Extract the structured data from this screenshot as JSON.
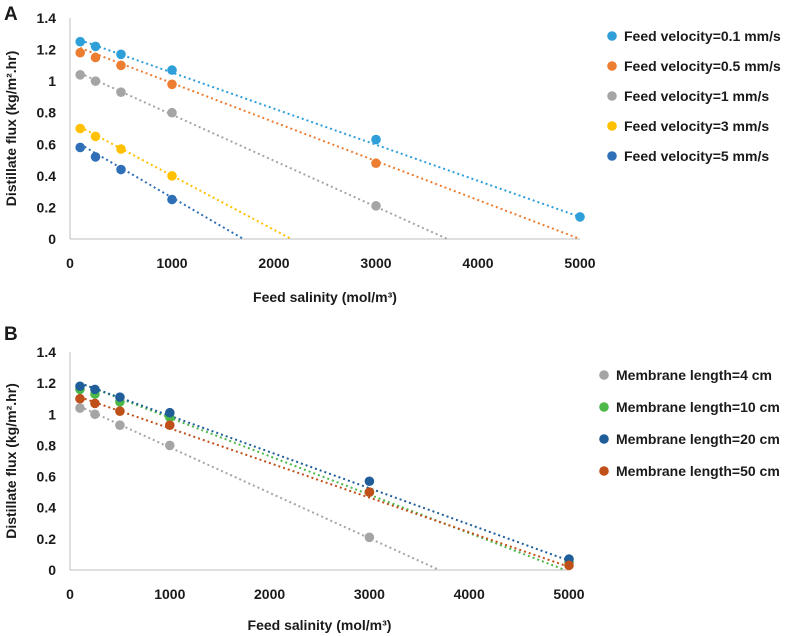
{
  "chart_data": [
    {
      "panel_label": "A",
      "type": "scatter",
      "xlabel": "Feed salinity (mol/m³)",
      "ylabel": "Distillate flux (kg/m².hr)",
      "xlim": [
        0,
        5000
      ],
      "ylim": [
        0,
        1.4
      ],
      "xticks": [
        "0",
        "1000",
        "2000",
        "3000",
        "4000",
        "5000"
      ],
      "yticks": [
        "0",
        "0.2",
        "0.4",
        "0.6",
        "0.8",
        "1",
        "1.2",
        "1.4"
      ],
      "legend_position": "right",
      "series": [
        {
          "name": "Feed velocity=0.1 mm/s",
          "color": "#2E9FD8",
          "x": [
            100,
            250,
            500,
            1000,
            3000,
            5000
          ],
          "y": [
            1.25,
            1.22,
            1.17,
            1.07,
            0.63,
            0.14
          ],
          "trend": {
            "x0": 100,
            "y0": 1.26,
            "x1": 5000,
            "y1": 0.14
          }
        },
        {
          "name": "Feed velocity=0.5 mm/s",
          "color": "#ED7D31",
          "x": [
            100,
            250,
            500,
            1000,
            3000
          ],
          "y": [
            1.18,
            1.15,
            1.1,
            0.98,
            0.48
          ],
          "trend": {
            "x0": 100,
            "y0": 1.21,
            "x1": 5000,
            "y1": 0.0
          }
        },
        {
          "name": "Feed velocity=1 mm/s",
          "color": "#A5A5A5",
          "x": [
            100,
            250,
            500,
            1000,
            3000
          ],
          "y": [
            1.04,
            1.0,
            0.93,
            0.8,
            0.21
          ],
          "trend": {
            "x0": 100,
            "y0": 1.05,
            "x1": 3700,
            "y1": 0.0
          }
        },
        {
          "name": "Feed velocity=3 mm/s",
          "color": "#FFC000",
          "x": [
            100,
            250,
            500,
            1000
          ],
          "y": [
            0.7,
            0.65,
            0.57,
            0.4
          ],
          "trend": {
            "x0": 100,
            "y0": 0.71,
            "x1": 2170,
            "y1": 0.0
          }
        },
        {
          "name": "Feed velocity=5 mm/s",
          "color": "#2F6FB7",
          "x": [
            100,
            250,
            500,
            1000
          ],
          "y": [
            0.58,
            0.52,
            0.44,
            0.25
          ],
          "trend": {
            "x0": 100,
            "y0": 0.6,
            "x1": 1700,
            "y1": 0.0
          }
        }
      ]
    },
    {
      "panel_label": "B",
      "type": "scatter",
      "xlabel": "Feed salinity (mol/m³)",
      "ylabel": "Distillate flux (kg/m².hr)",
      "xlim": [
        0,
        5000
      ],
      "ylim": [
        0,
        1.4
      ],
      "xticks": [
        "0",
        "1000",
        "2000",
        "3000",
        "4000",
        "5000"
      ],
      "yticks": [
        "0",
        "0.2",
        "0.4",
        "0.6",
        "0.8",
        "1",
        "1.2",
        "1.4"
      ],
      "legend_position": "right",
      "series": [
        {
          "name": "Membrane length=4 cm",
          "color": "#A5A5A5",
          "x": [
            100,
            250,
            500,
            1000,
            3000
          ],
          "y": [
            1.04,
            1.0,
            0.93,
            0.8,
            0.21
          ],
          "trend": {
            "x0": 100,
            "y0": 1.05,
            "x1": 3700,
            "y1": 0.0
          }
        },
        {
          "name": "Membrane length=10 cm",
          "color": "#4CB848",
          "x": [
            100,
            250,
            500,
            1000,
            3000,
            5000
          ],
          "y": [
            1.16,
            1.13,
            1.08,
            0.98,
            0.5,
            0.05
          ],
          "trend": {
            "x0": 100,
            "y0": 1.2,
            "x1": 4960,
            "y1": 0.0
          }
        },
        {
          "name": "Membrane length=20 cm",
          "color": "#1F5E99",
          "x": [
            100,
            250,
            500,
            1000,
            3000,
            5000
          ],
          "y": [
            1.18,
            1.16,
            1.11,
            1.01,
            0.57,
            0.07
          ],
          "trend": {
            "x0": 100,
            "y0": 1.2,
            "x1": 5000,
            "y1": 0.06
          }
        },
        {
          "name": "Membrane length=50 cm",
          "color": "#C0501A",
          "x": [
            100,
            250,
            500,
            1000,
            3000,
            5000
          ],
          "y": [
            1.1,
            1.07,
            1.02,
            0.93,
            0.5,
            0.03
          ],
          "trend": {
            "x0": 100,
            "y0": 1.11,
            "x1": 5000,
            "y1": 0.02
          }
        }
      ]
    }
  ]
}
